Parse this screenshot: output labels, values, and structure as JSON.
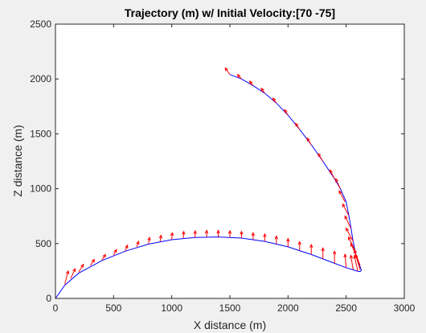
{
  "figure": {
    "background": "#f0f0f0",
    "plot_background": "#ffffff"
  },
  "chart_data": {
    "type": "line",
    "title": "Trajectory (m) w/ Initial Velocity:[70 -75]",
    "xlabel": "X distance (m)",
    "ylabel": "Z distance (m)",
    "xlim": [
      0,
      3000
    ],
    "ylim": [
      0,
      2500
    ],
    "xticks": [
      0,
      500,
      1000,
      1500,
      2000,
      2500,
      3000
    ],
    "yticks": [
      0,
      500,
      1000,
      1500,
      2000,
      2500
    ],
    "xtick_labels": [
      "0",
      "500",
      "1000",
      "1500",
      "2000",
      "2500",
      "3000"
    ],
    "ytick_labels": [
      "0",
      "500",
      "1000",
      "1500",
      "2000",
      "2500"
    ],
    "grid": false,
    "series": [
      {
        "kind": "line",
        "color": "#0000ff",
        "x": [
          0,
          80,
          200,
          400,
          600,
          800,
          1000,
          1200,
          1400,
          1600,
          1800,
          2000,
          2200,
          2400,
          2500,
          2560,
          2600,
          2620,
          2630,
          2620,
          2600,
          2580,
          2560,
          2540,
          2520,
          2500,
          2450,
          2400,
          2300,
          2200,
          2100,
          2000,
          1900,
          1800,
          1700,
          1600,
          1500
        ],
        "y": [
          0,
          120,
          230,
          345,
          430,
          495,
          535,
          555,
          560,
          550,
          520,
          470,
          400,
          320,
          280,
          260,
          248,
          245,
          255,
          290,
          340,
          420,
          520,
          650,
          770,
          880,
          1000,
          1090,
          1250,
          1400,
          1540,
          1670,
          1780,
          1870,
          1940,
          2000,
          2040
        ]
      },
      {
        "kind": "quiver",
        "color": "#ff0000",
        "description_values_only": true,
        "points": [
          {
            "x": 80,
            "y": 130,
            "u": 30,
            "v": 120
          },
          {
            "x": 130,
            "y": 180,
            "u": 40,
            "v": 90
          },
          {
            "x": 200,
            "y": 240,
            "u": 40,
            "v": 70
          },
          {
            "x": 300,
            "y": 300,
            "u": 35,
            "v": 55
          },
          {
            "x": 400,
            "y": 350,
            "u": 30,
            "v": 50
          },
          {
            "x": 500,
            "y": 395,
            "u": 25,
            "v": 50
          },
          {
            "x": 600,
            "y": 435,
            "u": 20,
            "v": 50
          },
          {
            "x": 700,
            "y": 470,
            "u": 15,
            "v": 50
          },
          {
            "x": 800,
            "y": 500,
            "u": 10,
            "v": 55
          },
          {
            "x": 900,
            "y": 520,
            "u": 8,
            "v": 55
          },
          {
            "x": 1000,
            "y": 538,
            "u": 5,
            "v": 60
          },
          {
            "x": 1100,
            "y": 550,
            "u": 3,
            "v": 60
          },
          {
            "x": 1200,
            "y": 556,
            "u": 2,
            "v": 60
          },
          {
            "x": 1300,
            "y": 560,
            "u": 0,
            "v": 60
          },
          {
            "x": 1400,
            "y": 560,
            "u": 0,
            "v": 60
          },
          {
            "x": 1500,
            "y": 557,
            "u": 0,
            "v": 60
          },
          {
            "x": 1600,
            "y": 550,
            "u": 0,
            "v": 60
          },
          {
            "x": 1700,
            "y": 538,
            "u": 0,
            "v": 60
          },
          {
            "x": 1800,
            "y": 522,
            "u": 0,
            "v": 65
          },
          {
            "x": 1900,
            "y": 498,
            "u": 0,
            "v": 70
          },
          {
            "x": 2000,
            "y": 470,
            "u": 0,
            "v": 75
          },
          {
            "x": 2100,
            "y": 437,
            "u": 0,
            "v": 80
          },
          {
            "x": 2200,
            "y": 400,
            "u": 0,
            "v": 90
          },
          {
            "x": 2300,
            "y": 360,
            "u": 0,
            "v": 100
          },
          {
            "x": 2400,
            "y": 320,
            "u": 0,
            "v": 110
          },
          {
            "x": 2500,
            "y": 282,
            "u": -10,
            "v": 120
          },
          {
            "x": 2560,
            "y": 262,
            "u": -20,
            "v": 130
          },
          {
            "x": 2600,
            "y": 250,
            "u": -30,
            "v": 140
          },
          {
            "x": 2620,
            "y": 262,
            "u": -40,
            "v": 140
          },
          {
            "x": 2620,
            "y": 300,
            "u": -50,
            "v": 140
          },
          {
            "x": 2600,
            "y": 360,
            "u": -60,
            "v": 140
          },
          {
            "x": 2580,
            "y": 430,
            "u": -60,
            "v": 130
          },
          {
            "x": 2560,
            "y": 520,
            "u": -60,
            "v": 120
          },
          {
            "x": 2540,
            "y": 640,
            "u": -50,
            "v": 110
          },
          {
            "x": 2520,
            "y": 760,
            "u": -50,
            "v": 100
          },
          {
            "x": 2490,
            "y": 880,
            "u": -50,
            "v": 100
          },
          {
            "x": 2450,
            "y": 1000,
            "u": -40,
            "v": 90
          },
          {
            "x": 2400,
            "y": 1090,
            "u": -40,
            "v": 80
          },
          {
            "x": 2300,
            "y": 1250,
            "u": -40,
            "v": 70
          },
          {
            "x": 2200,
            "y": 1400,
            "u": -35,
            "v": 60
          },
          {
            "x": 2100,
            "y": 1540,
            "u": -35,
            "v": 55
          },
          {
            "x": 2000,
            "y": 1670,
            "u": -30,
            "v": 50
          },
          {
            "x": 1900,
            "y": 1780,
            "u": -30,
            "v": 45
          },
          {
            "x": 1800,
            "y": 1870,
            "u": -30,
            "v": 45
          },
          {
            "x": 1700,
            "y": 1940,
            "u": -30,
            "v": 40
          },
          {
            "x": 1600,
            "y": 2000,
            "u": -35,
            "v": 40
          },
          {
            "x": 1500,
            "y": 2040,
            "u": -40,
            "v": 60
          }
        ]
      }
    ]
  }
}
